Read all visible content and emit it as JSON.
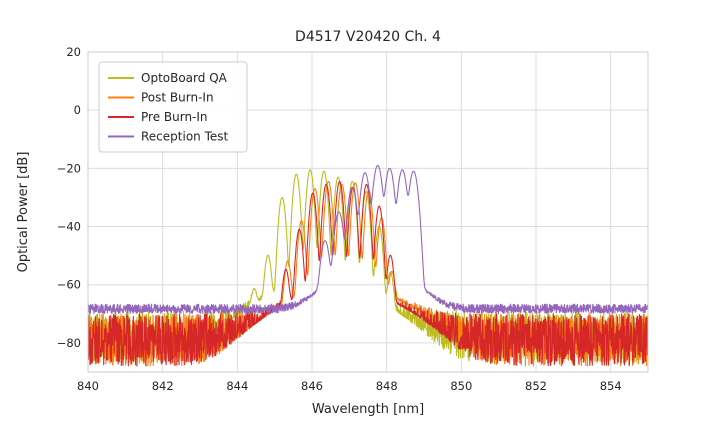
{
  "chart_data": {
    "type": "line",
    "title": "D4517 V20420 Ch. 4",
    "xlabel": "Wavelength [nm]",
    "ylabel": "Optical Power [dB]",
    "xlim": [
      840,
      855
    ],
    "ylim": [
      -90,
      20
    ],
    "xticks": [
      840,
      842,
      844,
      846,
      848,
      850,
      852,
      854
    ],
    "xtick_labels": [
      "840",
      "842",
      "844",
      "846",
      "848",
      "850",
      "852",
      "854"
    ],
    "yticks": [
      20,
      0,
      -20,
      -40,
      -60,
      -80
    ],
    "ytick_labels": [
      "20",
      "0",
      "−20",
      "−40",
      "−60",
      "−80"
    ],
    "grid": true,
    "legend_position": "upper left",
    "colors": {
      "grid": "#dcdcdc",
      "spine": "#cccccc",
      "text": "#262626"
    },
    "series": [
      {
        "name": "OptoBoard QA",
        "color": "#bcbd22",
        "seed": 101,
        "floor_db": -78,
        "noise_db": 9,
        "sigma_nm": 0.05,
        "modes": [
          {
            "x": 846.2,
            "y": -60,
            "sigma": 1.0
          },
          {
            "x": 844.45,
            "y": -63
          },
          {
            "x": 844.82,
            "y": -50
          },
          {
            "x": 845.2,
            "y": -30
          },
          {
            "x": 845.58,
            "y": -22
          },
          {
            "x": 845.95,
            "y": -20.5
          },
          {
            "x": 846.32,
            "y": -21
          },
          {
            "x": 846.7,
            "y": -23
          },
          {
            "x": 847.08,
            "y": -24.5
          },
          {
            "x": 847.45,
            "y": -28
          },
          {
            "x": 847.8,
            "y": -40
          },
          {
            "x": 848.1,
            "y": -56
          }
        ]
      },
      {
        "name": "Post Burn-In",
        "color": "#ff7f0e",
        "seed": 102,
        "floor_db": -79,
        "noise_db": 9,
        "sigma_nm": 0.05,
        "modes": [
          {
            "x": 846.9,
            "y": -61,
            "sigma": 1.0
          },
          {
            "x": 845.35,
            "y": -52
          },
          {
            "x": 845.72,
            "y": -38
          },
          {
            "x": 846.08,
            "y": -27
          },
          {
            "x": 846.44,
            "y": -24.5
          },
          {
            "x": 846.8,
            "y": -25.5
          },
          {
            "x": 847.16,
            "y": -25
          },
          {
            "x": 847.52,
            "y": -27.5
          },
          {
            "x": 847.86,
            "y": -37
          },
          {
            "x": 848.14,
            "y": -56
          }
        ]
      },
      {
        "name": "Pre Burn-In",
        "color": "#d62728",
        "seed": 103,
        "floor_db": -79,
        "noise_db": 9,
        "sigma_nm": 0.05,
        "modes": [
          {
            "x": 846.8,
            "y": -62,
            "sigma": 1.0
          },
          {
            "x": 845.3,
            "y": -55
          },
          {
            "x": 845.66,
            "y": -41
          },
          {
            "x": 846.02,
            "y": -28.5
          },
          {
            "x": 846.38,
            "y": -25.5
          },
          {
            "x": 846.74,
            "y": -24.5
          },
          {
            "x": 847.1,
            "y": -26.5
          },
          {
            "x": 847.46,
            "y": -25.5
          },
          {
            "x": 847.8,
            "y": -33
          },
          {
            "x": 848.1,
            "y": -50
          }
        ]
      },
      {
        "name": "Reception Test",
        "color": "#9467bd",
        "seed": 104,
        "floor_db": -68.3,
        "noise_db": 1.6,
        "sigma_nm": 0.065,
        "modes": [
          {
            "x": 847.6,
            "y": -54,
            "sigma": 0.7
          },
          {
            "x": 846.35,
            "y": -45
          },
          {
            "x": 846.72,
            "y": -35
          },
          {
            "x": 847.08,
            "y": -26.5
          },
          {
            "x": 847.42,
            "y": -21.5
          },
          {
            "x": 847.76,
            "y": -19
          },
          {
            "x": 848.08,
            "y": -20
          },
          {
            "x": 848.42,
            "y": -20.5
          },
          {
            "x": 848.72,
            "y": -21
          }
        ]
      }
    ]
  }
}
